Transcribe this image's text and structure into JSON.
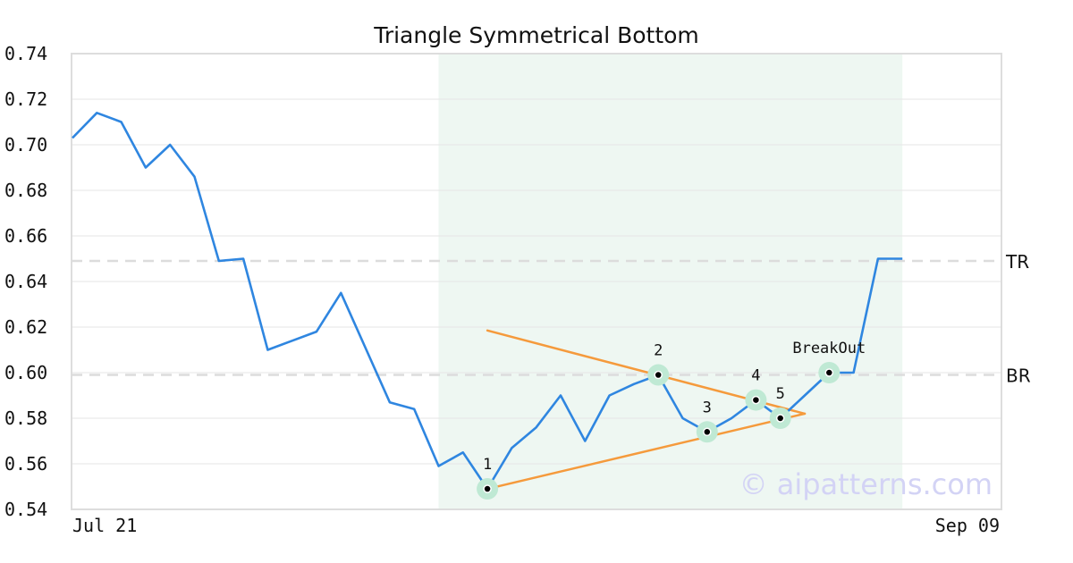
{
  "chart_data": {
    "type": "line",
    "title": "Triangle Symmetrical Bottom",
    "ylim": [
      0.54,
      0.74
    ],
    "y_ticks": [
      "0.54",
      "0.56",
      "0.58",
      "0.60",
      "0.62",
      "0.64",
      "0.66",
      "0.68",
      "0.70",
      "0.72",
      "0.74"
    ],
    "x_tick_labels": {
      "start": "Jul 21",
      "end": "Sep 09"
    },
    "grid": "horizontal",
    "series": [
      {
        "name": "",
        "color": "#2f86e0",
        "values": [
          0.703,
          0.714,
          0.71,
          0.69,
          0.7,
          0.686,
          0.649,
          0.65,
          0.61,
          0.614,
          0.618,
          0.635,
          0.611,
          0.587,
          0.584,
          0.559,
          0.565,
          0.549,
          0.567,
          0.576,
          0.59,
          0.57,
          0.59,
          0.595,
          0.599,
          0.58,
          0.574,
          0.58,
          0.588,
          0.58,
          0.59,
          0.6,
          0.6,
          0.65,
          0.65
        ]
      }
    ],
    "highlight_region": {
      "from_index": 15,
      "to_index": 34,
      "color": "#eef7f2"
    },
    "reference_lines": [
      {
        "label": "TR",
        "value": 0.649
      },
      {
        "label": "BR",
        "value": 0.599
      }
    ],
    "pattern_points": [
      {
        "label": "1",
        "index": 17,
        "value": 0.549
      },
      {
        "label": "2",
        "index": 24,
        "value": 0.599
      },
      {
        "label": "3",
        "index": 26,
        "value": 0.574
      },
      {
        "label": "4",
        "index": 28,
        "value": 0.588
      },
      {
        "label": "5",
        "index": 29,
        "value": 0.58
      },
      {
        "label": "BreakOut",
        "index": 31,
        "value": 0.6
      }
    ],
    "trendlines": [
      {
        "from": {
          "index": 17,
          "value": 0.6185
        },
        "to": {
          "index": 30,
          "value": 0.582
        },
        "color": "#f59a3c"
      },
      {
        "from": {
          "index": 17,
          "value": 0.549
        },
        "to": {
          "index": 30,
          "value": 0.582
        },
        "color": "#f59a3c"
      }
    ],
    "watermark": "© aipatterns.com"
  }
}
